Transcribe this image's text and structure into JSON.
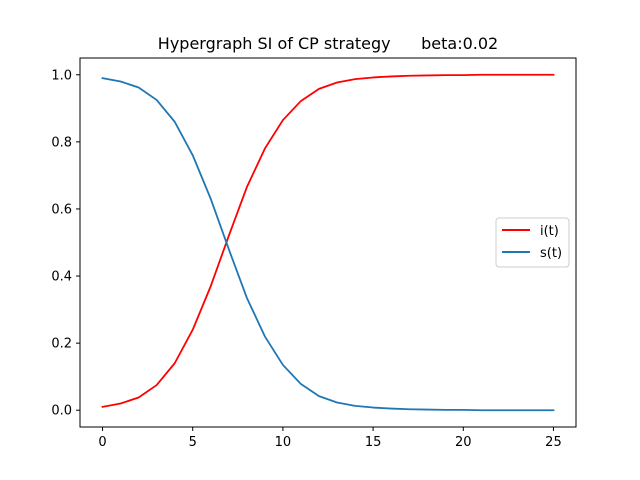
{
  "chart_data": {
    "type": "line",
    "title": "Hypergraph SI of CP strategy      beta:0.02",
    "xlabel": "",
    "ylabel": "",
    "xlim": [
      -1.25,
      26.25
    ],
    "ylim": [
      -0.05,
      1.05
    ],
    "xticks": [
      0,
      5,
      10,
      15,
      20,
      25
    ],
    "xtick_labels": [
      "0",
      "5",
      "10",
      "15",
      "20",
      "25"
    ],
    "yticks": [
      0.0,
      0.2,
      0.4,
      0.6,
      0.8,
      1.0
    ],
    "ytick_labels": [
      "0.0",
      "0.2",
      "0.4",
      "0.6",
      "0.8",
      "1.0"
    ],
    "grid": false,
    "legend_position": "center-right",
    "x": [
      0,
      1,
      2,
      3,
      4,
      5,
      6,
      7,
      8,
      9,
      10,
      11,
      12,
      13,
      14,
      15,
      16,
      17,
      18,
      19,
      20,
      21,
      22,
      23,
      24,
      25
    ],
    "series": [
      {
        "name": "i(t)",
        "color": "#ff0000",
        "values": [
          0.01,
          0.02,
          0.038,
          0.075,
          0.14,
          0.24,
          0.37,
          0.52,
          0.665,
          0.78,
          0.865,
          0.922,
          0.958,
          0.977,
          0.987,
          0.992,
          0.995,
          0.997,
          0.998,
          0.999,
          0.999,
          1.0,
          1.0,
          1.0,
          1.0,
          1.0
        ]
      },
      {
        "name": "s(t)",
        "color": "#1f77b4",
        "values": [
          0.99,
          0.98,
          0.962,
          0.925,
          0.86,
          0.76,
          0.63,
          0.48,
          0.335,
          0.22,
          0.135,
          0.078,
          0.042,
          0.023,
          0.013,
          0.008,
          0.005,
          0.003,
          0.002,
          0.001,
          0.001,
          0.0,
          0.0,
          0.0,
          0.0,
          0.0
        ]
      }
    ]
  }
}
